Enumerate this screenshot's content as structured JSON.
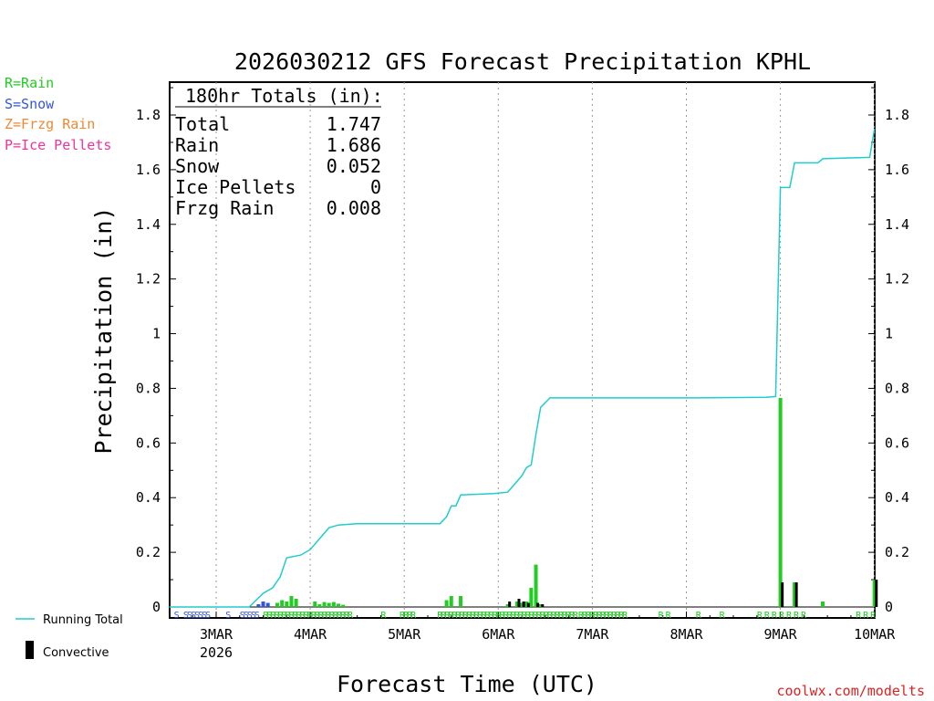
{
  "title": "2026030212 GFS Forecast Precipitation KPHL",
  "legend_top": [
    {
      "text": "R=Rain",
      "color": "#22cc22"
    },
    {
      "text": "S=Snow",
      "color": "#3355dd"
    },
    {
      "text": "Z=Frzg Rain",
      "color": "#ee8833"
    },
    {
      "text": "P=Ice Pellets",
      "color": "#ee3399"
    }
  ],
  "totals_box": {
    "header": "180hr Totals (in):",
    "rows": [
      {
        "label": "Total",
        "value": "1.747"
      },
      {
        "label": "Rain",
        "value": "1.686"
      },
      {
        "label": "Snow",
        "value": "0.052"
      },
      {
        "label": "Ice Pellets",
        "value": "0"
      },
      {
        "label": "Frzg Rain",
        "value": "0.008"
      }
    ]
  },
  "legend_bottom": {
    "running_total": "Running Total",
    "convective": "Convective"
  },
  "watermark": "coolwx.com/modelts",
  "colors": {
    "running_total": "#22cccc",
    "rain": "#22cc22",
    "snow": "#3355dd",
    "convective": "#000000",
    "grid": "#999999"
  },
  "chart_data": {
    "type": "bar",
    "title": "2026030212 GFS Forecast Precipitation KPHL",
    "xlabel": "Forecast Time (UTC)",
    "ylabel": "Precipitation (in)",
    "ylim": [
      0,
      1.93
    ],
    "xlim_days": [
      -0.5,
      7.0
    ],
    "x_ticks": [
      {
        "day": 0,
        "label": "3MAR",
        "sub": "2026"
      },
      {
        "day": 1,
        "label": "4MAR"
      },
      {
        "day": 2,
        "label": "5MAR"
      },
      {
        "day": 3,
        "label": "6MAR"
      },
      {
        "day": 4,
        "label": "7MAR"
      },
      {
        "day": 5,
        "label": "8MAR"
      },
      {
        "day": 6,
        "label": "9MAR"
      },
      {
        "day": 7,
        "label": "10MAR"
      }
    ],
    "y_ticks": [
      0,
      0.2,
      0.4,
      0.6,
      0.8,
      1,
      1.2,
      1.4,
      1.6,
      1.8
    ],
    "running_total": [
      [
        -0.5,
        0
      ],
      [
        0.35,
        0.0
      ],
      [
        0.5,
        0.05
      ],
      [
        0.6,
        0.07
      ],
      [
        0.68,
        0.11
      ],
      [
        0.75,
        0.18
      ],
      [
        0.9,
        0.19
      ],
      [
        1.0,
        0.21
      ],
      [
        1.1,
        0.25
      ],
      [
        1.2,
        0.29
      ],
      [
        1.3,
        0.3
      ],
      [
        1.5,
        0.305
      ],
      [
        2.0,
        0.305
      ],
      [
        2.38,
        0.305
      ],
      [
        2.45,
        0.33
      ],
      [
        2.5,
        0.37
      ],
      [
        2.55,
        0.37
      ],
      [
        2.6,
        0.41
      ],
      [
        2.95,
        0.415
      ],
      [
        3.1,
        0.42
      ],
      [
        3.15,
        0.44
      ],
      [
        3.25,
        0.48
      ],
      [
        3.3,
        0.51
      ],
      [
        3.35,
        0.52
      ],
      [
        3.4,
        0.63
      ],
      [
        3.45,
        0.73
      ],
      [
        3.55,
        0.765
      ],
      [
        4.0,
        0.765
      ],
      [
        5.0,
        0.765
      ],
      [
        5.85,
        0.767
      ],
      [
        5.95,
        0.77
      ],
      [
        6.0,
        1.535
      ],
      [
        6.1,
        1.535
      ],
      [
        6.15,
        1.625
      ],
      [
        6.4,
        1.625
      ],
      [
        6.45,
        1.64
      ],
      [
        6.95,
        1.645
      ],
      [
        7.0,
        1.75
      ]
    ],
    "rain_bars": [
      {
        "day": 0.65,
        "value": 0.015
      },
      {
        "day": 0.7,
        "value": 0.025
      },
      {
        "day": 0.75,
        "value": 0.02
      },
      {
        "day": 0.8,
        "value": 0.04
      },
      {
        "day": 0.85,
        "value": 0.03
      },
      {
        "day": 1.05,
        "value": 0.02
      },
      {
        "day": 1.1,
        "value": 0.01
      },
      {
        "day": 1.15,
        "value": 0.018
      },
      {
        "day": 1.2,
        "value": 0.015
      },
      {
        "day": 1.25,
        "value": 0.018
      },
      {
        "day": 1.3,
        "value": 0.012
      },
      {
        "day": 1.35,
        "value": 0.008
      },
      {
        "day": 2.45,
        "value": 0.025
      },
      {
        "day": 2.5,
        "value": 0.04
      },
      {
        "day": 2.6,
        "value": 0.04
      },
      {
        "day": 3.1,
        "value": 0.01
      },
      {
        "day": 3.2,
        "value": 0.02
      },
      {
        "day": 3.25,
        "value": 0.015
      },
      {
        "day": 3.3,
        "value": 0.02
      },
      {
        "day": 3.35,
        "value": 0.07
      },
      {
        "day": 3.4,
        "value": 0.155
      },
      {
        "day": 3.45,
        "value": 0.01
      },
      {
        "day": 6.0,
        "value": 0.765
      },
      {
        "day": 6.15,
        "value": 0.09
      },
      {
        "day": 6.45,
        "value": 0.02
      },
      {
        "day": 7.0,
        "value": 0.1
      }
    ],
    "snow_bars": [
      {
        "day": 0.45,
        "value": 0.01
      },
      {
        "day": 0.5,
        "value": 0.02
      },
      {
        "day": 0.55,
        "value": 0.015
      }
    ],
    "convective_bars": [
      {
        "day": 3.12,
        "value": 0.02
      },
      {
        "day": 3.22,
        "value": 0.03
      },
      {
        "day": 3.27,
        "value": 0.02
      },
      {
        "day": 3.32,
        "value": 0.015
      },
      {
        "day": 3.42,
        "value": 0.015
      },
      {
        "day": 3.47,
        "value": 0.01
      },
      {
        "day": 6.02,
        "value": 0.09
      },
      {
        "day": 6.17,
        "value": 0.09
      },
      {
        "day": 7.02,
        "value": 0.1
      }
    ],
    "ptype_marks": [
      {
        "day": -0.45,
        "t": "S"
      },
      {
        "day": -0.35,
        "t": "SSSSSSS"
      },
      {
        "day": 0.1,
        "t": "S"
      },
      {
        "day": 0.25,
        "t": "SSSSS"
      },
      {
        "day": 0.5,
        "t": "RRRRRRRRRRRRRRRRRRRRRRRR"
      },
      {
        "day": 1.75,
        "t": "R"
      },
      {
        "day": 1.95,
        "t": "RRRR"
      },
      {
        "day": 2.35,
        "t": "RRRRRRRRRRRRRRRRRRRRRRRRRRRRRRRRRRRRRR"
      },
      {
        "day": 3.85,
        "t": "RRRRRRRRRRRRR"
      },
      {
        "day": 4.7,
        "t": "R R"
      },
      {
        "day": 5.1,
        "t": "R"
      },
      {
        "day": 5.35,
        "t": "R"
      },
      {
        "day": 5.75,
        "t": "R R R R R R R"
      },
      {
        "day": 6.8,
        "t": "R R R"
      }
    ]
  }
}
